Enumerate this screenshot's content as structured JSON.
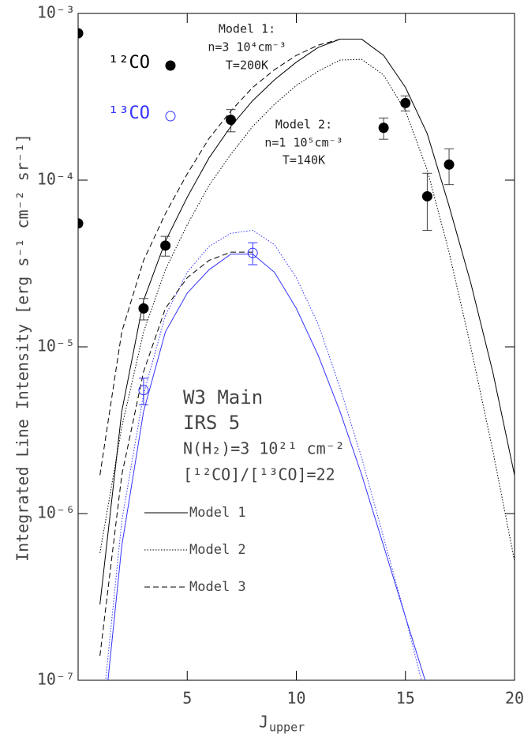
{
  "chart_data": {
    "type": "scatter",
    "x_label": "J",
    "x_label_sub": "upper",
    "y_label": "Integrated Line Intensity [erg s⁻¹ cm⁻² sr⁻¹]",
    "xlim": [
      0,
      20
    ],
    "xticks": [
      5,
      10,
      15,
      20
    ],
    "ylim": [
      1e-07,
      0.001
    ],
    "log_y": true,
    "yticks": [
      {
        "value": 1e-07,
        "label": "10⁻⁷"
      },
      {
        "value": 1e-06,
        "label": "10⁻⁶"
      },
      {
        "value": 1e-05,
        "label": "10⁻⁵"
      },
      {
        "value": 0.0001,
        "label": "10⁻⁴"
      },
      {
        "value": 0.001,
        "label": "10⁻³"
      }
    ],
    "series": [
      {
        "name": "¹²CO",
        "color": "#000000",
        "marker": "filled",
        "x": [
          0,
          0,
          3,
          4,
          7,
          14,
          15,
          16,
          17
        ],
        "values": [
          0.00076,
          5.5e-05,
          1.7e-05,
          4.05e-05,
          0.00023,
          0.000206,
          0.00029,
          8e-05,
          0.000124
        ],
        "errors": [
          null,
          null,
          2.5e-06,
          5.5e-06,
          3.5e-05,
          3e-05,
          3e-05,
          3e-05,
          3e-05
        ]
      },
      {
        "name": "¹³CO",
        "color": "#3333ff",
        "marker": "open",
        "x": [
          3,
          8
        ],
        "values": [
          5.5e-06,
          3.66e-05
        ],
        "errors": [
          1e-06,
          5.5e-06
        ]
      }
    ],
    "model_x": [
      1,
      2,
      3,
      4,
      5,
      6,
      7,
      8,
      9,
      10,
      11,
      12,
      13,
      14,
      15,
      16,
      17,
      18,
      19,
      20
    ],
    "models": [
      {
        "name": "Model 1",
        "dash": "solid",
        "curves": [
          {
            "color": "#000000",
            "values": [
              2.85e-07,
              4.1e-06,
              1.9e-05,
              4.3e-05,
              7.9e-05,
              0.000136,
              0.00021,
              0.0003,
              0.0004,
              0.00051,
              0.000625,
              0.0007,
              0.0007,
              0.00056,
              0.00036,
              0.00019,
              7e-05,
              2.4e-05,
              7.1e-06,
              1.7e-06
            ]
          },
          {
            "color": "#3333ff",
            "values": [
              3.4e-08,
              6.4e-07,
              4.1e-06,
              1.23e-05,
              2.1e-05,
              2.9e-05,
              3.6e-05,
              3.6e-05,
              2.8e-05,
              1.7e-05,
              8.9e-06,
              4.1e-06,
              1.7e-06,
              6.4e-07,
              2.4e-07,
              9.1e-08,
              null,
              null,
              null,
              null
            ]
          }
        ]
      },
      {
        "name": "Model 2",
        "dash": "dotted",
        "curves": [
          {
            "color": "#000000",
            "values": [
              5.8e-07,
              3.3e-06,
              1.23e-05,
              2.9e-05,
              5.4e-05,
              9.3e-05,
              0.000143,
              0.00021,
              0.000285,
              0.00037,
              0.00045,
              0.000525,
              0.00053,
              0.000427,
              0.00026,
              0.000115,
              3.7e-05,
              9.9e-06,
              2.4e-06,
              5.2e-07
            ]
          },
          {
            "color": "#3333ff",
            "values": [
              4.6e-08,
              9e-07,
              5.2e-06,
              1.54e-05,
              2.8e-05,
              4e-05,
              4.8e-05,
              5e-05,
              4.1e-05,
              2.6e-05,
              1.37e-05,
              5.7e-06,
              2.15e-06,
              7.2e-07,
              2.4e-07,
              7.3e-08,
              null,
              null,
              null,
              null
            ]
          }
        ]
      },
      {
        "name": "Model 3",
        "dash": "dashed",
        "curves": [
          {
            "color": "#000000",
            "values": [
              1.7e-06,
              1.23e-05,
              3.3e-05,
              6.3e-05,
              0.000109,
              0.000178,
              0.00026,
              0.00036,
              0.00046,
              0.00056,
              0.000645,
              0.0007,
              null,
              null,
              null,
              null,
              null,
              null,
              null,
              null
            ]
          },
          {
            "color": "#000000",
            "values": [
              1.4e-07,
              1.7e-06,
              7.1e-06,
              1.7e-05,
              2.6e-05,
              3.3e-05,
              3.7e-05,
              3.7e-05,
              null,
              null,
              null,
              null,
              null,
              null,
              null,
              null,
              null,
              null,
              null,
              null
            ]
          }
        ]
      }
    ],
    "annotations": [
      "Model 1:",
      "n=3 10⁴cm⁻³",
      "T=200K",
      "Model 2:",
      "n=1 10⁵cm⁻³",
      "T=140K"
    ],
    "source_text": [
      "W3 Main",
      "IRS 5",
      "N(H₂)=3 10²¹ cm⁻²",
      "[¹²CO]/[¹³CO]=22"
    ]
  }
}
